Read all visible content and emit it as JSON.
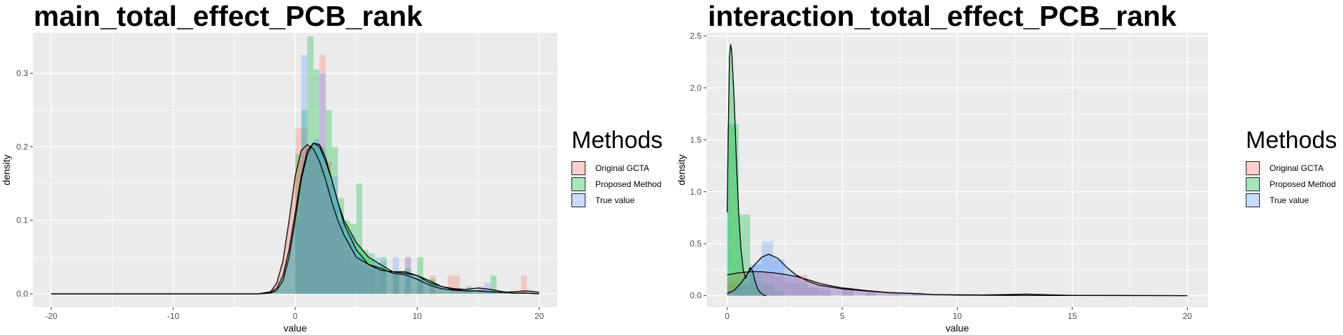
{
  "chart_data": [
    {
      "type": "histogram-density",
      "title": "main_total_effect_PCB_rank",
      "xlabel": "value",
      "ylabel": "density",
      "xlim": [
        -21.5,
        21.5
      ],
      "ylim": [
        -0.018,
        0.355
      ],
      "x_ticks": [
        -20,
        -10,
        0,
        10,
        20
      ],
      "y_ticks": [
        0.0,
        0.1,
        0.2,
        0.3
      ],
      "grid": true,
      "legend_position": "right",
      "series": [
        {
          "name": "Original GCTA",
          "color": "#F8766D",
          "histogram": [
            [
              0.0,
              0.225
            ],
            [
              0.5,
              0.225
            ],
            [
              1.0,
              0.2
            ],
            [
              1.5,
              0.205
            ],
            [
              2.0,
              0.325
            ],
            [
              2.5,
              0.18
            ],
            [
              3.0,
              0.12
            ],
            [
              3.5,
              0.09
            ],
            [
              4.0,
              0.06
            ],
            [
              4.5,
              0.045
            ],
            [
              5.0,
              0.04
            ],
            [
              5.5,
              0.035
            ],
            [
              6.0,
              0.035
            ],
            [
              7.0,
              0.03
            ],
            [
              8.0,
              0.025
            ],
            [
              9.0,
              0.05
            ],
            [
              10.0,
              0.02
            ],
            [
              11.0,
              0.025
            ],
            [
              12.5,
              0.025
            ],
            [
              13.0,
              0.025
            ],
            [
              15.0,
              0.01
            ],
            [
              18.5,
              0.025
            ]
          ],
          "density": [
            [
              -20,
              0
            ],
            [
              -3,
              0
            ],
            [
              -2,
              0.003
            ],
            [
              -1.5,
              0.015
            ],
            [
              -1,
              0.045
            ],
            [
              -0.5,
              0.1
            ],
            [
              0,
              0.16
            ],
            [
              0.5,
              0.195
            ],
            [
              1,
              0.203
            ],
            [
              1.5,
              0.197
            ],
            [
              2,
              0.18
            ],
            [
              2.5,
              0.155
            ],
            [
              3,
              0.125
            ],
            [
              3.5,
              0.1
            ],
            [
              4,
              0.08
            ],
            [
              5,
              0.05
            ],
            [
              6,
              0.04
            ],
            [
              7,
              0.035
            ],
            [
              8,
              0.028
            ],
            [
              9,
              0.026
            ],
            [
              10,
              0.02
            ],
            [
              11,
              0.012
            ],
            [
              12,
              0.007
            ],
            [
              13,
              0.005
            ],
            [
              14,
              0.004
            ],
            [
              15,
              0.004
            ],
            [
              16,
              0.003
            ],
            [
              17,
              0.002
            ],
            [
              18,
              0.003
            ],
            [
              19,
              0.004
            ],
            [
              20,
              0.002
            ]
          ]
        },
        {
          "name": "Proposed Method",
          "color": "#00BA38",
          "histogram": [
            [
              0.0,
              0.19
            ],
            [
              0.5,
              0.25
            ],
            [
              1.0,
              0.35
            ],
            [
              1.5,
              0.305
            ],
            [
              2.0,
              0.2
            ],
            [
              2.5,
              0.25
            ],
            [
              3.0,
              0.2
            ],
            [
              3.5,
              0.13
            ],
            [
              4.0,
              0.1
            ],
            [
              4.5,
              0.095
            ],
            [
              5.0,
              0.15
            ],
            [
              5.5,
              0.06
            ],
            [
              6.0,
              0.055
            ],
            [
              6.5,
              0.035
            ],
            [
              7.0,
              0.05
            ],
            [
              8.0,
              0.03
            ],
            [
              9.0,
              0.035
            ],
            [
              10.0,
              0.05
            ],
            [
              11.0,
              0.02
            ],
            [
              14.0,
              0.01
            ],
            [
              16.0,
              0.025
            ]
          ],
          "density": [
            [
              -20,
              0
            ],
            [
              -3,
              0
            ],
            [
              -2,
              0.002
            ],
            [
              -1.5,
              0.008
            ],
            [
              -1,
              0.025
            ],
            [
              -0.5,
              0.06
            ],
            [
              0,
              0.11
            ],
            [
              0.5,
              0.16
            ],
            [
              1,
              0.195
            ],
            [
              1.5,
              0.205
            ],
            [
              2,
              0.2
            ],
            [
              2.5,
              0.18
            ],
            [
              3,
              0.155
            ],
            [
              3.5,
              0.125
            ],
            [
              4,
              0.1
            ],
            [
              5,
              0.07
            ],
            [
              6,
              0.05
            ],
            [
              7,
              0.04
            ],
            [
              8,
              0.03
            ],
            [
              9,
              0.028
            ],
            [
              10,
              0.025
            ],
            [
              11,
              0.018
            ],
            [
              12,
              0.01
            ],
            [
              13,
              0.006
            ],
            [
              14,
              0.004
            ],
            [
              15,
              0.004
            ],
            [
              16,
              0.003
            ],
            [
              17,
              0.002
            ],
            [
              18,
              0.001
            ],
            [
              19,
              0.001
            ],
            [
              20,
              0
            ]
          ]
        },
        {
          "name": "True value",
          "color": "#619CFF",
          "histogram": [
            [
              0.0,
              0.1
            ],
            [
              0.5,
              0.325
            ],
            [
              1.0,
              0.2
            ],
            [
              1.5,
              0.21
            ],
            [
              2.0,
              0.3
            ],
            [
              2.5,
              0.15
            ],
            [
              3.0,
              0.16
            ],
            [
              3.5,
              0.1
            ],
            [
              4.0,
              0.08
            ],
            [
              4.5,
              0.08
            ],
            [
              5.0,
              0.05
            ],
            [
              5.5,
              0.04
            ],
            [
              6.0,
              0.035
            ],
            [
              6.5,
              0.05
            ],
            [
              7.0,
              0.045
            ],
            [
              8.0,
              0.05
            ],
            [
              9.0,
              0.05
            ],
            [
              10.0,
              0.02
            ],
            [
              15.5,
              0.015
            ]
          ],
          "density": [
            [
              -20,
              0
            ],
            [
              -3,
              0
            ],
            [
              -2,
              0.001
            ],
            [
              -1.5,
              0.005
            ],
            [
              -1,
              0.018
            ],
            [
              -0.5,
              0.05
            ],
            [
              0,
              0.1
            ],
            [
              0.5,
              0.155
            ],
            [
              1,
              0.19
            ],
            [
              1.5,
              0.205
            ],
            [
              2,
              0.203
            ],
            [
              2.5,
              0.185
            ],
            [
              3,
              0.155
            ],
            [
              3.5,
              0.125
            ],
            [
              4,
              0.095
            ],
            [
              5,
              0.06
            ],
            [
              6,
              0.04
            ],
            [
              7,
              0.032
            ],
            [
              8,
              0.03
            ],
            [
              9,
              0.03
            ],
            [
              10,
              0.025
            ],
            [
              11,
              0.015
            ],
            [
              12,
              0.01
            ],
            [
              13,
              0.007
            ],
            [
              14,
              0.006
            ],
            [
              15,
              0.008
            ],
            [
              16,
              0.006
            ],
            [
              17,
              0.003
            ],
            [
              18,
              0.001
            ],
            [
              19,
              0.001
            ],
            [
              20,
              0
            ]
          ]
        }
      ]
    },
    {
      "type": "histogram-density",
      "title": "interaction_total_effect_PCB_rank",
      "xlabel": "value",
      "ylabel": "density",
      "xlim": [
        -0.9,
        20.9
      ],
      "ylim": [
        -0.11,
        2.53
      ],
      "x_ticks": [
        0,
        5,
        10,
        15,
        20
      ],
      "y_ticks": [
        0.0,
        0.5,
        1.0,
        1.5,
        2.0,
        2.5
      ],
      "grid": true,
      "legend_position": "right",
      "series": [
        {
          "name": "Original GCTA",
          "color": "#F8766D",
          "histogram": [
            [
              0.0,
              0.12
            ],
            [
              0.5,
              0.1
            ],
            [
              1.0,
              0.1
            ],
            [
              1.5,
              0.22
            ],
            [
              2.0,
              0.18
            ],
            [
              2.5,
              0.12
            ],
            [
              3.0,
              0.2
            ],
            [
              3.5,
              0.08
            ],
            [
              4.0,
              0.05
            ],
            [
              5.0,
              0.07
            ],
            [
              6.0,
              0.03
            ],
            [
              7.0,
              0.02
            ],
            [
              8.0,
              0.015
            ],
            [
              9.0,
              0.01
            ],
            [
              11.0,
              0.01
            ],
            [
              13.0,
              0.01
            ]
          ],
          "density": [
            [
              0,
              0.2
            ],
            [
              0.5,
              0.22
            ],
            [
              1,
              0.23
            ],
            [
              1.5,
              0.23
            ],
            [
              2,
              0.22
            ],
            [
              2.5,
              0.205
            ],
            [
              3,
              0.185
            ],
            [
              3.5,
              0.155
            ],
            [
              4,
              0.12
            ],
            [
              4.5,
              0.095
            ],
            [
              5,
              0.075
            ],
            [
              6,
              0.05
            ],
            [
              7,
              0.03
            ],
            [
              8,
              0.022
            ],
            [
              9,
              0.01
            ],
            [
              10,
              0.008
            ],
            [
              11,
              0.007
            ],
            [
              12,
              0.01
            ],
            [
              13,
              0.015
            ],
            [
              14,
              0.008
            ],
            [
              15,
              0.002
            ],
            [
              20,
              0
            ]
          ]
        },
        {
          "name": "Proposed Method",
          "color": "#00BA38",
          "histogram": [
            [
              0.0,
              1.65
            ],
            [
              0.5,
              0.78
            ],
            [
              1.0,
              0.22
            ],
            [
              1.5,
              0.12
            ],
            [
              2.0,
              0.05
            ]
          ],
          "density": [
            [
              0,
              0.8
            ],
            [
              0.05,
              1.6
            ],
            [
              0.1,
              2.3
            ],
            [
              0.15,
              2.42
            ],
            [
              0.2,
              2.35
            ],
            [
              0.3,
              1.9
            ],
            [
              0.4,
              1.3
            ],
            [
              0.5,
              0.8
            ],
            [
              0.6,
              0.45
            ],
            [
              0.7,
              0.25
            ],
            [
              0.8,
              0.17
            ],
            [
              0.9,
              0.22
            ],
            [
              1.0,
              0.27
            ],
            [
              1.1,
              0.24
            ],
            [
              1.2,
              0.15
            ],
            [
              1.3,
              0.08
            ],
            [
              1.4,
              0.04
            ],
            [
              1.5,
              0.02
            ],
            [
              1.6,
              0.005
            ],
            [
              1.7,
              0
            ]
          ]
        },
        {
          "name": "True value",
          "color": "#619CFF",
          "histogram": [
            [
              0.0,
              0.05
            ],
            [
              0.5,
              0.1
            ],
            [
              1.0,
              0.3
            ],
            [
              1.5,
              0.52
            ],
            [
              2.0,
              0.35
            ],
            [
              2.5,
              0.18
            ],
            [
              3.0,
              0.12
            ],
            [
              3.5,
              0.08
            ],
            [
              4.0,
              0.07
            ],
            [
              5.0,
              0.08
            ],
            [
              6.0,
              0.03
            ],
            [
              8.0,
              0.03
            ]
          ],
          "density": [
            [
              0,
              0.02
            ],
            [
              0.3,
              0.05
            ],
            [
              0.6,
              0.12
            ],
            [
              1,
              0.25
            ],
            [
              1.5,
              0.37
            ],
            [
              1.8,
              0.4
            ],
            [
              2.2,
              0.36
            ],
            [
              2.6,
              0.27
            ],
            [
              3,
              0.2
            ],
            [
              3.5,
              0.14
            ],
            [
              4,
              0.1
            ],
            [
              5,
              0.065
            ],
            [
              6,
              0.045
            ],
            [
              7,
              0.03
            ],
            [
              8,
              0.022
            ],
            [
              9,
              0.01
            ],
            [
              10,
              0.005
            ],
            [
              12,
              0.003
            ],
            [
              20,
              0
            ]
          ]
        }
      ]
    }
  ],
  "legend": {
    "title": "Methods",
    "items": [
      "Original GCTA",
      "Proposed Method",
      "True value"
    ]
  }
}
